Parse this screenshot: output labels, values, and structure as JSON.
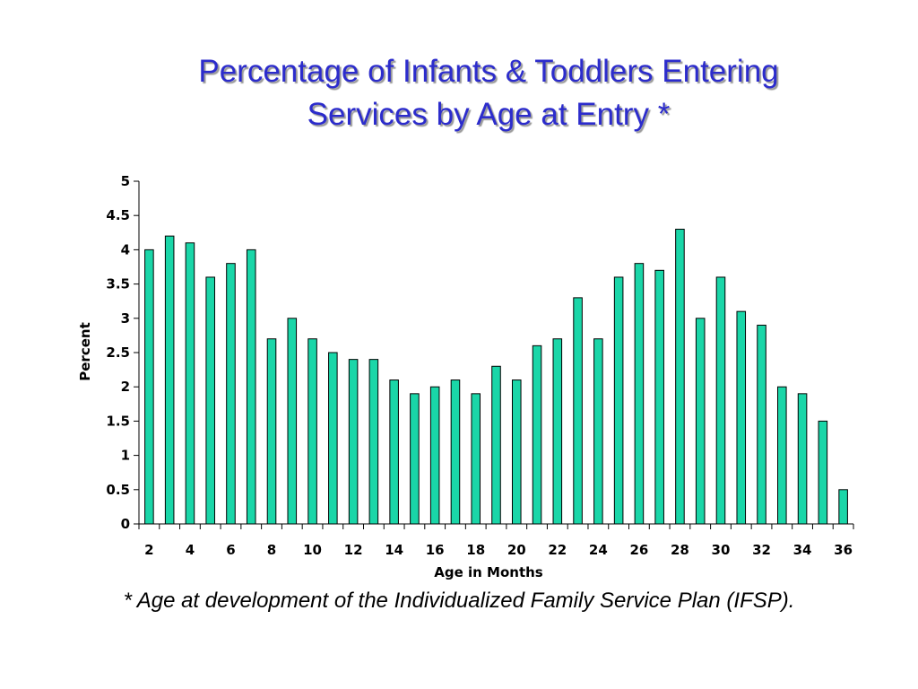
{
  "slide": {
    "title_line1": "Percentage of Infants & Toddlers Entering",
    "title_line2": "Services by Age at Entry *",
    "footnote": "* Age at development of the Individualized Family Service Plan (IFSP)."
  },
  "chart_data": {
    "type": "bar",
    "xlabel": "Age in Months",
    "ylabel": "Percent",
    "ylim": [
      0,
      5
    ],
    "y_ticks": [
      0,
      0.5,
      1,
      1.5,
      2,
      2.5,
      3,
      3.5,
      4,
      4.5,
      5
    ],
    "categories": [
      2,
      3,
      4,
      5,
      6,
      7,
      8,
      9,
      10,
      11,
      12,
      13,
      14,
      15,
      16,
      17,
      18,
      19,
      20,
      21,
      22,
      23,
      24,
      25,
      26,
      27,
      28,
      29,
      30,
      31,
      32,
      33,
      34,
      35,
      36
    ],
    "x_tick_labels": [
      2,
      4,
      6,
      8,
      10,
      12,
      14,
      16,
      18,
      20,
      22,
      24,
      26,
      28,
      30,
      32,
      34,
      36
    ],
    "values": [
      4.0,
      4.2,
      4.1,
      3.6,
      3.8,
      4.0,
      2.7,
      3.0,
      2.7,
      2.5,
      2.4,
      2.4,
      2.1,
      1.9,
      2.0,
      2.1,
      1.9,
      2.3,
      2.1,
      2.6,
      2.7,
      3.3,
      2.7,
      3.6,
      3.8,
      3.7,
      4.3,
      3.0,
      3.6,
      3.1,
      2.9,
      2.0,
      1.9,
      1.5,
      0.5
    ],
    "bar_color": "#1ad6a8",
    "bar_stroke": "#000000",
    "grid": false,
    "legend": "none"
  }
}
